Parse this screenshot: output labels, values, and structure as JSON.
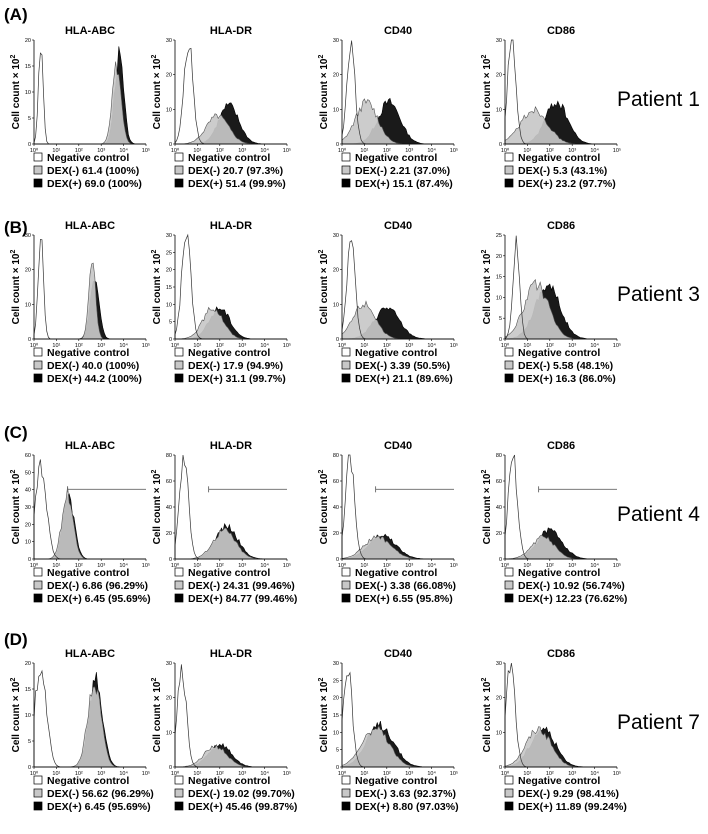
{
  "chart_data": [
    {
      "type": "histogram",
      "panel_label": "(A)",
      "patient": "Patient 1",
      "ylabel": "Cell count × 10",
      "ylabel_exp": "2",
      "legend_header": "Negative control",
      "plots": [
        {
          "title": "HLA-ABC",
          "yticks": [
            "0",
            "5",
            "10",
            "15",
            "20"
          ],
          "xticks": [
            "10⁰",
            "10¹",
            "10²",
            "10³",
            "10⁴",
            "10⁵"
          ],
          "ymax": 20,
          "series": {
            "neg": {
              "center": 0.3,
              "width": 0.1,
              "peak": 20
            },
            "minus": {
              "center": 3.7,
              "width": 0.2,
              "peak": 15
            },
            "plus": {
              "center": 3.8,
              "width": 0.2,
              "peak": 17
            }
          },
          "legend": [
            "DEX(-) 61.4 (100%)",
            "DEX(+) 69.0 (100%)"
          ],
          "gate": false
        },
        {
          "title": "HLA-DR",
          "yticks": [
            "0",
            "10",
            "20",
            "30"
          ],
          "xticks": [
            "10⁰",
            "10¹",
            "10²",
            "10³",
            "10⁴",
            "10⁵"
          ],
          "ymax": 30,
          "series": {
            "neg": {
              "center": 0.6,
              "width": 0.2,
              "peak": 30
            },
            "minus": {
              "center": 1.9,
              "width": 0.5,
              "peak": 8
            },
            "plus": {
              "center": 2.4,
              "width": 0.45,
              "peak": 11
            }
          },
          "legend": [
            "DEX(-) 20.7 (97.3%)",
            "DEX(+) 51.4 (99.9%)"
          ],
          "gate": false
        },
        {
          "title": "CD40",
          "yticks": [
            "0",
            "10",
            "20",
            "30"
          ],
          "xticks": [
            "10⁰",
            "10¹",
            "10²",
            "10³",
            "10⁴",
            "10⁵"
          ],
          "ymax": 30,
          "series": {
            "neg": {
              "center": 0.4,
              "width": 0.18,
              "peak": 30
            },
            "minus": {
              "center": 1.1,
              "width": 0.5,
              "peak": 12
            },
            "plus": {
              "center": 2.1,
              "width": 0.5,
              "peak": 12
            }
          },
          "legend": [
            "DEX(-) 2.21 (37.0%)",
            "DEX(+) 15.1 (87.4%)"
          ],
          "gate": false
        },
        {
          "title": "CD86",
          "yticks": [
            "0",
            "10",
            "20",
            "30"
          ],
          "xticks": [
            "10⁰",
            "10¹",
            "10²",
            "10³",
            "10⁴",
            "10⁵"
          ],
          "ymax": 30,
          "series": {
            "neg": {
              "center": 0.3,
              "width": 0.18,
              "peak": 30
            },
            "minus": {
              "center": 1.3,
              "width": 0.6,
              "peak": 10
            },
            "plus": {
              "center": 2.3,
              "width": 0.5,
              "peak": 12
            }
          },
          "legend": [
            "DEX(-) 5.3 (43.1%)",
            "DEX(+) 23.2 (97.7%)"
          ],
          "gate": false
        }
      ]
    },
    {
      "type": "histogram",
      "panel_label": "(B)",
      "patient": "Patient 3",
      "ylabel": "Cell count × 10",
      "ylabel_exp": "2",
      "legend_header": "Negative control",
      "plots": [
        {
          "title": "HLA-ABC",
          "yticks": [
            "0",
            "10",
            "20",
            "30"
          ],
          "xticks": [
            "10⁰",
            "10¹",
            "10²",
            "10³",
            "10⁴",
            "10⁵"
          ],
          "ymax": 30,
          "series": {
            "neg": {
              "center": 0.3,
              "width": 0.12,
              "peak": 30
            },
            "minus": {
              "center": 2.6,
              "width": 0.15,
              "peak": 22
            },
            "plus": {
              "center": 2.7,
              "width": 0.2,
              "peak": 17
            }
          },
          "legend": [
            "DEX(-) 40.0 (100%)",
            "DEX(+) 44.2 (100%)"
          ],
          "gate": false
        },
        {
          "title": "HLA-DR",
          "yticks": [
            "0",
            "5",
            "10",
            "15",
            "20",
            "25",
            "30"
          ],
          "xticks": [
            "10⁰",
            "10¹",
            "10²",
            "10³",
            "10⁴",
            "10⁵"
          ],
          "ymax": 30,
          "series": {
            "neg": {
              "center": 0.5,
              "width": 0.2,
              "peak": 30
            },
            "minus": {
              "center": 1.7,
              "width": 0.45,
              "peak": 9
            },
            "plus": {
              "center": 2.0,
              "width": 0.45,
              "peak": 9
            }
          },
          "legend": [
            "DEX(-) 17.9 (94.9%)",
            "DEX(+) 31.1 (99.7%)"
          ],
          "gate": false
        },
        {
          "title": "CD40",
          "yticks": [
            "0",
            "10",
            "20",
            "30"
          ],
          "xticks": [
            "10⁰",
            "10¹",
            "10²",
            "10³",
            "10⁴",
            "10⁵"
          ],
          "ymax": 30,
          "series": {
            "neg": {
              "center": 0.4,
              "width": 0.18,
              "peak": 30
            },
            "minus": {
              "center": 1.0,
              "width": 0.5,
              "peak": 10
            },
            "plus": {
              "center": 2.0,
              "width": 0.55,
              "peak": 9
            }
          },
          "legend": [
            "DEX(-) 3.39 (50.5%)",
            "DEX(+) 21.1 (89.6%)"
          ],
          "gate": false
        },
        {
          "title": "CD86",
          "yticks": [
            "0",
            "5",
            "10",
            "15",
            "20",
            "25"
          ],
          "xticks": [
            "10⁰",
            "10¹",
            "10²",
            "10³",
            "10⁴",
            "10⁵"
          ],
          "ymax": 25,
          "series": {
            "neg": {
              "center": 0.5,
              "width": 0.15,
              "peak": 23
            },
            "minus": {
              "center": 1.4,
              "width": 0.55,
              "peak": 13
            },
            "plus": {
              "center": 1.9,
              "width": 0.55,
              "peak": 13
            }
          },
          "legend": [
            "DEX(-) 5.58 (48.1%)",
            "DEX(+) 16.3 (86.0%)"
          ],
          "gate": false
        }
      ]
    },
    {
      "type": "histogram",
      "panel_label": "(C)",
      "patient": "Patient 4",
      "ylabel": "Cell count × 10",
      "ylabel_exp": "2",
      "legend_header": "Negative control",
      "plots": [
        {
          "title": "HLA-ABC",
          "yticks": [
            "0",
            "10",
            "20",
            "30",
            "40",
            "50",
            "60"
          ],
          "xticks": [
            "10⁰",
            "10¹",
            "10²",
            "10³",
            "10⁴",
            "10⁵"
          ],
          "ymax": 60,
          "series": {
            "neg": {
              "center": 0.3,
              "width": 0.25,
              "peak": 55
            },
            "minus": {
              "center": 1.5,
              "width": 0.25,
              "peak": 38
            },
            "plus": {
              "center": 1.55,
              "width": 0.25,
              "peak": 36
            }
          },
          "legend": [
            "DEX(-) 6.86 (96.29%)",
            "DEX(+) 6.45 (95.69%)"
          ],
          "gate": true
        },
        {
          "title": "HLA-DR",
          "yticks": [
            "0",
            "20",
            "40",
            "60",
            "80"
          ],
          "xticks": [
            "10⁰",
            "10¹",
            "10²",
            "10³",
            "10⁴",
            "10⁵"
          ],
          "ymax": 80,
          "series": {
            "neg": {
              "center": 0.4,
              "width": 0.2,
              "peak": 78
            },
            "minus": {
              "center": 2.2,
              "width": 0.5,
              "peak": 22
            },
            "plus": {
              "center": 2.3,
              "width": 0.5,
              "peak": 25
            }
          },
          "legend": [
            "DEX(-) 24.31 (99.46%)",
            "DEX(+) 84.77 (99.46%)"
          ],
          "gate": true
        },
        {
          "title": "CD40",
          "yticks": [
            "0",
            "20",
            "40",
            "60",
            "80"
          ],
          "xticks": [
            "10⁰",
            "10¹",
            "10²",
            "10³",
            "10⁴",
            "10⁵"
          ],
          "ymax": 80,
          "series": {
            "neg": {
              "center": 0.35,
              "width": 0.2,
              "peak": 80
            },
            "minus": {
              "center": 1.6,
              "width": 0.6,
              "peak": 17
            },
            "plus": {
              "center": 1.8,
              "width": 0.6,
              "peak": 18
            }
          },
          "legend": [
            "DEX(-) 3.38 (66.08%)",
            "DEX(+) 6.55 (95.8%)"
          ],
          "gate": true
        },
        {
          "title": "CD86",
          "yticks": [
            "0",
            "20",
            "40",
            "60",
            "80"
          ],
          "xticks": [
            "10⁰",
            "10¹",
            "10²",
            "10³",
            "10⁴",
            "10⁵"
          ],
          "ymax": 80,
          "series": {
            "neg": {
              "center": 0.35,
              "width": 0.2,
              "peak": 80
            },
            "minus": {
              "center": 1.7,
              "width": 0.5,
              "peak": 17
            },
            "plus": {
              "center": 2.0,
              "width": 0.55,
              "peak": 22
            }
          },
          "legend": [
            "DEX(-) 10.92 (56.74%)",
            "DEX(+) 12.23 (76.62%)"
          ],
          "gate": true
        }
      ]
    },
    {
      "type": "histogram",
      "panel_label": "(D)",
      "patient": "Patient 7",
      "ylabel": "Cell count × 10",
      "ylabel_exp": "2",
      "legend_header": "Negative control",
      "plots": [
        {
          "title": "HLA-ABC",
          "yticks": [
            "0",
            "5",
            "10",
            "15",
            "20"
          ],
          "xticks": [
            "10⁰",
            "10¹",
            "10²",
            "10³",
            "10⁴",
            "10⁵"
          ],
          "ymax": 20,
          "series": {
            "neg": {
              "center": 0.3,
              "width": 0.25,
              "peak": 20
            },
            "minus": {
              "center": 2.7,
              "width": 0.3,
              "peak": 16
            },
            "plus": {
              "center": 2.75,
              "width": 0.3,
              "peak": 17
            }
          },
          "legend": [
            "DEX(-) 56.62 (96.29%)",
            "DEX(+) 6.45 (95.69%)"
          ],
          "gate": false
        },
        {
          "title": "HLA-DR",
          "yticks": [
            "0",
            "10",
            "20",
            "30"
          ],
          "xticks": [
            "10⁰",
            "10¹",
            "10²",
            "10³",
            "10⁴",
            "10⁵"
          ],
          "ymax": 30,
          "series": {
            "neg": {
              "center": 0.3,
              "width": 0.2,
              "peak": 29
            },
            "minus": {
              "center": 1.8,
              "width": 0.5,
              "peak": 6
            },
            "plus": {
              "center": 2.0,
              "width": 0.5,
              "peak": 6.5
            }
          },
          "legend": [
            "DEX(-) 19.02 (99.70%)",
            "DEX(+) 45.46 (99.87%)"
          ],
          "gate": false
        },
        {
          "title": "CD40",
          "yticks": [
            "0",
            "5",
            "10",
            "15",
            "20",
            "25",
            "30"
          ],
          "xticks": [
            "10⁰",
            "10¹",
            "10²",
            "10³",
            "10⁴",
            "10⁵"
          ],
          "ymax": 30,
          "series": {
            "neg": {
              "center": 0.25,
              "width": 0.2,
              "peak": 29
            },
            "minus": {
              "center": 1.5,
              "width": 0.6,
              "peak": 11
            },
            "plus": {
              "center": 1.7,
              "width": 0.6,
              "peak": 12
            }
          },
          "legend": [
            "DEX(-) 3.63 (92.37%)",
            "DEX(+) 8.80 (97.03%)"
          ],
          "gate": false
        },
        {
          "title": "CD86",
          "yticks": [
            "0",
            "10",
            "20",
            "30"
          ],
          "xticks": [
            "10⁰",
            "10¹",
            "10²",
            "10³",
            "10⁴",
            "10⁵"
          ],
          "ymax": 30,
          "series": {
            "neg": {
              "center": 0.25,
              "width": 0.2,
              "peak": 30
            },
            "minus": {
              "center": 1.5,
              "width": 0.55,
              "peak": 11
            },
            "plus": {
              "center": 1.7,
              "width": 0.55,
              "peak": 11
            }
          },
          "legend": [
            "DEX(-) 9.29 (98.41%)",
            "DEX(+) 11.89 (99.24%)"
          ],
          "gate": false
        }
      ]
    }
  ]
}
